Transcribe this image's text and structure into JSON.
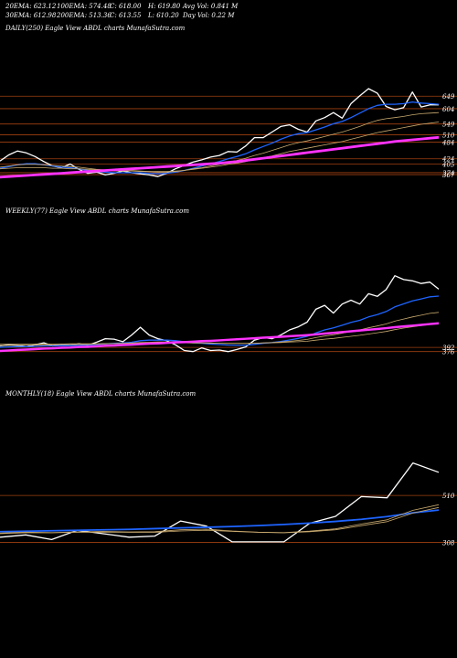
{
  "header": {
    "row1": [
      "20EMA: 623.12",
      "100EMA: 574.48",
      "C: 618.00",
      "H: 619.80",
      "Avg Vol: 0.841 M"
    ],
    "row2": [
      "30EMA: 612.98",
      "200EMA: 513.36",
      "C: 613.55",
      "L: 610.20",
      "Day Vol: 0.22 M"
    ]
  },
  "colors": {
    "background": "#000000",
    "price": "#ffffff",
    "ema_fast": "#1e64ff",
    "ema_slow": "#ff33ff",
    "ema_mid": "#c8a96e",
    "level_line": "#a04010"
  },
  "chart_data": [
    {
      "type": "line",
      "title": "DAILY(250) Eagle  View  ABDL  charts MunafaSutra.com",
      "ylim": [
        364,
        676
      ],
      "levels": [
        {
          "value": 649,
          "label": "649"
        },
        {
          "value": 604,
          "label": "604"
        },
        {
          "value": 549,
          "label": "549"
        },
        {
          "value": 510,
          "label": "510"
        },
        {
          "value": 484,
          "label": "484"
        },
        {
          "value": 424,
          "label": "424"
        },
        {
          "value": 405,
          "label": "405"
        },
        {
          "value": 374,
          "label": "374"
        },
        {
          "value": 367,
          "label": "367"
        }
      ],
      "series": [
        {
          "role": "price",
          "values": [
            416,
            438,
            452,
            445,
            432,
            414,
            398,
            392,
            405,
            386,
            372,
            376,
            366,
            372,
            380,
            374,
            370,
            366,
            360,
            372,
            388,
            400,
            412,
            420,
            430,
            436,
            450,
            448,
            470,
            500,
            500,
            520,
            540,
            546,
            530,
            520,
            560,
            572,
            590,
            570,
            622,
            650,
            676,
            660,
            612,
            600,
            608,
            664,
            610,
            618,
            618
          ]
        },
        {
          "role": "ema_fast",
          "values": [
            390,
            396,
            402,
            406,
            406,
            402,
            398,
            394,
            392,
            388,
            382,
            378,
            376,
            374,
            374,
            374,
            374,
            372,
            370,
            372,
            376,
            382,
            390,
            398,
            406,
            414,
            424,
            432,
            442,
            456,
            468,
            480,
            494,
            506,
            514,
            518,
            528,
            538,
            550,
            558,
            572,
            588,
            604,
            616,
            620,
            620,
            622,
            628,
            624,
            622,
            620
          ]
        },
        {
          "role": "ema_mid",
          "values": [
            394,
            398,
            402,
            404,
            404,
            402,
            400,
            398,
            396,
            394,
            390,
            386,
            384,
            382,
            382,
            382,
            380,
            378,
            376,
            376,
            378,
            382,
            388,
            392,
            398,
            404,
            412,
            418,
            426,
            436,
            444,
            454,
            464,
            474,
            482,
            488,
            496,
            504,
            512,
            520,
            530,
            540,
            552,
            562,
            568,
            572,
            576,
            582,
            586,
            588,
            590
          ]
        },
        {
          "role": "ema_mid",
          "values": [
            388,
            390,
            392,
            392,
            392,
            392,
            390,
            390,
            388,
            388,
            386,
            384,
            382,
            380,
            380,
            380,
            378,
            378,
            378,
            378,
            380,
            382,
            386,
            390,
            394,
            398,
            404,
            408,
            414,
            422,
            428,
            434,
            442,
            450,
            456,
            462,
            468,
            474,
            480,
            486,
            494,
            502,
            510,
            518,
            524,
            530,
            536,
            542,
            548,
            552,
            556
          ]
        },
        {
          "role": "ema_slow",
          "values": [
            360,
            362,
            364,
            366,
            368,
            370,
            372,
            374,
            376,
            378,
            380,
            382,
            384,
            386,
            388,
            390,
            392,
            394,
            396,
            398,
            400,
            402,
            404,
            406,
            408,
            410,
            413,
            416,
            420,
            424,
            428,
            432,
            436,
            440,
            444,
            448,
            452,
            456,
            460,
            464,
            468,
            472,
            476,
            480,
            484,
            488,
            491,
            494,
            497,
            500,
            503
          ]
        },
        {
          "role": "ema_slow",
          "values": [
            356,
            358,
            360,
            362,
            364,
            366,
            368,
            370,
            372,
            374,
            376,
            378,
            380,
            382,
            384,
            386,
            388,
            390,
            392,
            394,
            396,
            398,
            400,
            402,
            404,
            406,
            409,
            412,
            416,
            420,
            424,
            428,
            432,
            436,
            440,
            444,
            448,
            452,
            456,
            460,
            464,
            468,
            472,
            476,
            480,
            484,
            487,
            490,
            493,
            496,
            499
          ]
        }
      ]
    },
    {
      "type": "line",
      "title": "WEEKLY(77) Eagle  View  ABDL  charts MunafaSutra.com",
      "ylim": [
        350,
        676
      ],
      "levels": [
        {
          "value": 392,
          "label": "392"
        },
        {
          "value": 376,
          "label": "376"
        }
      ],
      "series": [
        {
          "role": "price",
          "values": [
            398,
            402,
            400,
            395,
            402,
            410,
            398,
            404,
            400,
            406,
            400,
            412,
            426,
            424,
            414,
            440,
            470,
            440,
            426,
            418,
            402,
            380,
            376,
            390,
            380,
            382,
            376,
            384,
            394,
            420,
            430,
            426,
            440,
            460,
            472,
            490,
            540,
            555,
            525,
            560,
            575,
            560,
            600,
            590,
            616,
            670,
            655,
            650,
            640,
            645,
            618
          ]
        },
        {
          "role": "ema_fast",
          "values": [
            392,
            394,
            395,
            395,
            396,
            398,
            398,
            399,
            399,
            400,
            401,
            403,
            406,
            408,
            409,
            412,
            418,
            420,
            420,
            420,
            418,
            414,
            410,
            408,
            405,
            403,
            401,
            400,
            400,
            404,
            408,
            411,
            415,
            421,
            427,
            435,
            448,
            460,
            468,
            478,
            489,
            497,
            510,
            519,
            531,
            549,
            561,
            572,
            580,
            588,
            591
          ]
        },
        {
          "role": "ema_mid",
          "values": [
            400,
            400,
            401,
            401,
            401,
            402,
            402,
            403,
            403,
            404,
            404,
            405,
            406,
            407,
            408,
            409,
            411,
            412,
            413,
            413,
            413,
            412,
            411,
            410,
            409,
            408,
            407,
            407,
            407,
            408,
            410,
            411,
            413,
            416,
            419,
            423,
            430,
            436,
            441,
            447,
            454,
            460,
            468,
            475,
            483,
            494,
            502,
            510,
            517,
            524,
            528
          ]
        },
        {
          "role": "ema_mid",
          "values": [
            405,
            405,
            405,
            405,
            405,
            405,
            405,
            405,
            406,
            406,
            406,
            406,
            407,
            407,
            407,
            408,
            409,
            409,
            410,
            410,
            410,
            410,
            409,
            409,
            408,
            408,
            408,
            408,
            408,
            408,
            409,
            410,
            411,
            413,
            414,
            416,
            420,
            424,
            427,
            431,
            435,
            439,
            444,
            449,
            454,
            461,
            467,
            472,
            477,
            482,
            486
          ]
        },
        {
          "role": "ema_slow",
          "values": [
            380,
            382,
            384,
            385,
            387,
            389,
            390,
            392,
            393,
            395,
            396,
            398,
            400,
            401,
            403,
            404,
            406,
            408,
            409,
            411,
            413,
            414,
            416,
            418,
            419,
            421,
            423,
            425,
            427,
            429,
            431,
            433,
            435,
            437,
            439,
            441,
            444,
            447,
            450,
            453,
            456,
            459,
            462,
            465,
            468,
            472,
            475,
            478,
            481,
            484,
            487
          ]
        },
        {
          "role": "ema_slow",
          "values": [
            377,
            379,
            381,
            382,
            384,
            386,
            387,
            389,
            390,
            392,
            393,
            395,
            397,
            398,
            400,
            401,
            403,
            405,
            406,
            408,
            410,
            411,
            413,
            415,
            416,
            418,
            420,
            422,
            424,
            426,
            428,
            430,
            432,
            434,
            436,
            438,
            441,
            444,
            447,
            450,
            453,
            456,
            459,
            462,
            465,
            469,
            472,
            475,
            478,
            481,
            484
          ]
        }
      ]
    },
    {
      "type": "line",
      "title": "MONTHLY(18) Eagle  View  ABDL  charts MunafaSutra.com",
      "ylim": [
        290,
        676
      ],
      "levels": [
        {
          "value": 510,
          "label": "510"
        },
        {
          "value": 308,
          "label": "308"
        }
      ],
      "series": [
        {
          "x": [
            0,
            1,
            2,
            3,
            4,
            5,
            6,
            7,
            8,
            9,
            10,
            11,
            12,
            13,
            14,
            15,
            16,
            17
          ],
          "role": "price",
          "values": [
            330,
            340,
            320,
            360,
            345,
            330,
            335,
            400,
            378,
            310,
            310,
            310,
            390,
            420,
            505,
            500,
            650,
            610
          ]
        },
        {
          "x": [
            0,
            1,
            2,
            3,
            4,
            5,
            6,
            7,
            8,
            9,
            10,
            11,
            12,
            13,
            14,
            15,
            16,
            17
          ],
          "role": "ema_fast",
          "values": [
            355,
            357,
            359,
            361,
            363,
            365,
            368,
            371,
            374,
            377,
            381,
            386,
            392,
            399,
            408,
            420,
            436,
            448
          ]
        },
        {
          "x": [
            0,
            1,
            2,
            3,
            4,
            5,
            6,
            7,
            8,
            9,
            10,
            11,
            12,
            13,
            14,
            15,
            16,
            17
          ],
          "role": "ema_fast",
          "values": [
            353,
            355,
            357,
            359,
            361,
            363,
            366,
            369,
            372,
            375,
            379,
            384,
            390,
            397,
            406,
            418,
            434,
            446
          ]
        },
        {
          "x": [
            0,
            1,
            2,
            3,
            4,
            5,
            6,
            7,
            8,
            9,
            10,
            11,
            12,
            13,
            14,
            15,
            16,
            17
          ],
          "role": "ema_mid",
          "values": [
            348,
            352,
            350,
            353,
            355,
            353,
            354,
            362,
            365,
            357,
            352,
            350,
            356,
            366,
            387,
            405,
            446,
            470
          ]
        },
        {
          "x": [
            0,
            1,
            2,
            3,
            4,
            5,
            6,
            7,
            8,
            9,
            10,
            11,
            12,
            13,
            14,
            15,
            16,
            17
          ],
          "role": "ema_mid",
          "values": [
            345,
            349,
            349,
            351,
            352,
            351,
            351,
            357,
            360,
            355,
            351,
            349,
            354,
            362,
            380,
            397,
            434,
            458
          ]
        }
      ]
    }
  ]
}
